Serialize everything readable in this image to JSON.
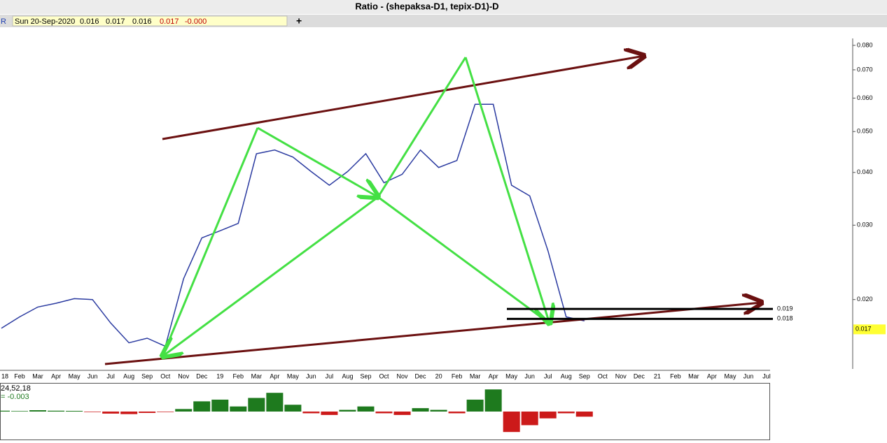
{
  "header": {
    "title": "Ratio - (shepaksa-D1, tepix-D1)-D"
  },
  "info_bar": {
    "symbol": "R",
    "date": "Sun 20-Sep-2020",
    "open": "0.016",
    "high": "0.017",
    "low": "0.016",
    "close": "0.017",
    "change": "-0.000"
  },
  "chart_data": [
    {
      "type": "line",
      "log_scale": true,
      "color": "#2a3aa0",
      "categories": [
        "18",
        "Feb",
        "Mar",
        "Apr",
        "May",
        "Jun",
        "Jul",
        "Aug",
        "Sep",
        "Oct",
        "Nov",
        "Dec",
        "19",
        "Feb",
        "Mar",
        "Apr",
        "May",
        "Jun",
        "Jul",
        "Aug",
        "Sep",
        "Oct",
        "Nov",
        "Dec",
        "20",
        "Feb",
        "Mar",
        "Apr",
        "May",
        "Jun",
        "Jul",
        "Aug",
        "Sep",
        "Oct",
        "Nov",
        "Dec",
        "21",
        "Feb",
        "Mar",
        "Apr",
        "May",
        "Jun",
        "Jul"
      ],
      "values": [
        0.0171,
        0.0182,
        0.0192,
        0.0196,
        0.0201,
        0.02,
        0.0176,
        0.0158,
        0.0162,
        0.0155,
        0.0224,
        0.028,
        0.0291,
        0.0303,
        0.0443,
        0.0452,
        0.0435,
        0.0402,
        0.0373,
        0.0402,
        0.0443,
        0.0378,
        0.0396,
        0.0452,
        0.0411,
        0.0427,
        0.058,
        0.058,
        0.0373,
        0.0352,
        0.0261,
        0.0182,
        0.0178,
        null,
        null,
        null,
        null,
        null,
        null,
        null,
        null,
        null,
        null
      ],
      "ylim": [
        0.0137,
        0.0863
      ],
      "yticks": [
        {
          "value": 0.08,
          "label": "0.080"
        },
        {
          "value": 0.07,
          "label": "0.070"
        },
        {
          "value": 0.06,
          "label": "0.060"
        },
        {
          "value": 0.05,
          "label": "0.050"
        },
        {
          "value": 0.04,
          "label": "0.040"
        },
        {
          "value": 0.03,
          "label": "0.030"
        },
        {
          "value": 0.02,
          "label": "0.020"
        }
      ],
      "levels": [
        {
          "value": 0.019,
          "label": "0.019"
        },
        {
          "value": 0.018,
          "label": "0.018"
        }
      ],
      "last_price": {
        "value": 0.017,
        "label": "0.017"
      }
    },
    {
      "type": "histogram",
      "label": "24,52,18",
      "value_text": "= -0.003",
      "positive_color": "#1e7a1e",
      "negative_color": "#cc1a1a",
      "values": [
        0.0005,
        0.0003,
        0.0008,
        0.0005,
        0.0004,
        -0.0003,
        -0.0012,
        -0.0015,
        -0.0008,
        -0.0003,
        0.0015,
        0.006,
        0.007,
        0.003,
        0.008,
        0.011,
        0.004,
        -0.001,
        -0.002,
        0.001,
        0.003,
        -0.001,
        -0.002,
        0.002,
        0.001,
        -0.001,
        0.007,
        0.013,
        -0.012,
        -0.008,
        -0.004,
        -0.001,
        -0.003
      ],
      "ylim": [
        -0.016,
        0.016
      ]
    }
  ]
}
